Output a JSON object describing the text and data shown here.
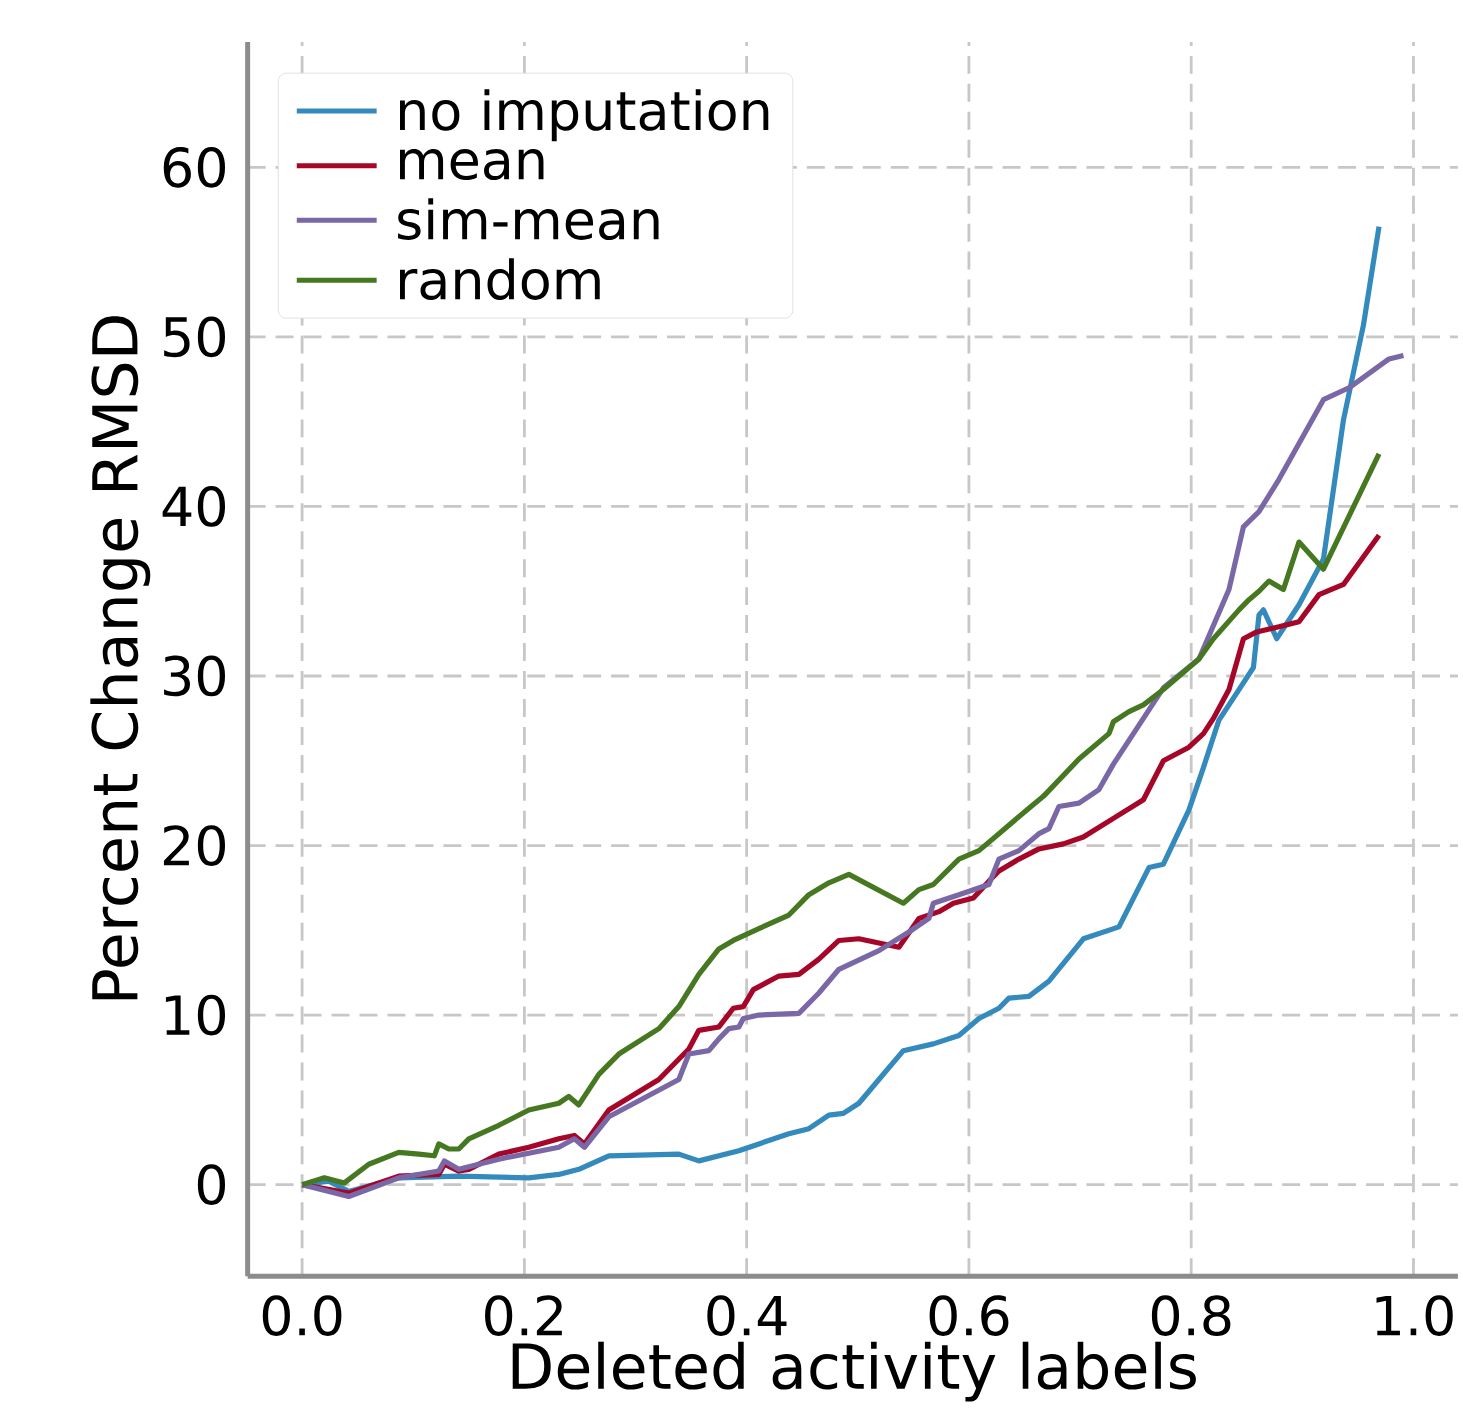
{
  "chart_data": {
    "type": "line",
    "xlabel": "Deleted activity labels",
    "ylabel": "Percent Change RMSD",
    "xlim": [
      -0.049,
      1.04
    ],
    "ylim": [
      -5.4,
      67.4
    ],
    "xticks": [
      {
        "value": 0,
        "label": "0.0"
      },
      {
        "value": 0.2,
        "label": "0.2"
      },
      {
        "value": 0.4,
        "label": "0.4"
      },
      {
        "value": 0.6,
        "label": "0.6"
      },
      {
        "value": 0.8,
        "label": "0.8"
      },
      {
        "value": 1,
        "label": "1.0"
      }
    ],
    "yticks": [
      0,
      10,
      20,
      30,
      40,
      50,
      60
    ],
    "grid": true,
    "legend": "top left",
    "series": [
      {
        "name": "no imputation",
        "color": "#348abd",
        "x": [
          0,
          0.024,
          0.042,
          0.087,
          0.141,
          0.204,
          0.231,
          0.249,
          0.276,
          0.339,
          0.357,
          0.393,
          0.411,
          0.438,
          0.456,
          0.474,
          0.487,
          0.501,
          0.519,
          0.541,
          0.568,
          0.591,
          0.609,
          0.627,
          0.636,
          0.654,
          0.672,
          0.703,
          0.735,
          0.762,
          0.775,
          0.798,
          0.811,
          0.825,
          0.843,
          0.856,
          0.861,
          0.865,
          0.877,
          0.897,
          0.919,
          0.937,
          0.955,
          0.969
        ],
        "values": [
          0,
          0.2,
          -0.4,
          0.4,
          0.5,
          0.4,
          0.6,
          0.9,
          1.7,
          1.8,
          1.4,
          2.0,
          2.4,
          3.0,
          3.3,
          4.1,
          4.2,
          4.8,
          6.2,
          7.9,
          8.3,
          8.8,
          9.8,
          10.4,
          11.0,
          11.1,
          12.0,
          14.5,
          15.2,
          18.7,
          18.9,
          22.1,
          24.6,
          27.4,
          29.2,
          30.5,
          33.6,
          33.9,
          32.2,
          34.2,
          36.9,
          45.1,
          50.7,
          56.5
        ]
      },
      {
        "name": "mean",
        "color": "#a60628",
        "x": [
          0,
          0.042,
          0.087,
          0.123,
          0.128,
          0.141,
          0.15,
          0.177,
          0.204,
          0.231,
          0.245,
          0.254,
          0.276,
          0.321,
          0.348,
          0.357,
          0.375,
          0.388,
          0.397,
          0.406,
          0.429,
          0.447,
          0.465,
          0.483,
          0.501,
          0.537,
          0.555,
          0.573,
          0.586,
          0.604,
          0.618,
          0.627,
          0.645,
          0.663,
          0.685,
          0.703,
          0.73,
          0.757,
          0.775,
          0.798,
          0.811,
          0.82,
          0.834,
          0.847,
          0.859,
          0.879,
          0.897,
          0.915,
          0.937,
          0.969
        ],
        "values": [
          0,
          -0.5,
          0.5,
          0.6,
          1.2,
          0.8,
          0.9,
          1.8,
          2.2,
          2.7,
          2.9,
          2.4,
          4.4,
          6.2,
          8.0,
          9.1,
          9.3,
          10.4,
          10.5,
          11.5,
          12.3,
          12.4,
          13.3,
          14.4,
          14.5,
          14.0,
          15.7,
          16.1,
          16.6,
          16.9,
          17.9,
          18.5,
          19.2,
          19.8,
          20.1,
          20.5,
          21.6,
          22.7,
          25.0,
          25.8,
          26.6,
          27.5,
          29.2,
          32.2,
          32.6,
          32.9,
          33.2,
          34.8,
          35.4,
          38.3
        ]
      },
      {
        "name": "sim-mean",
        "color": "#7a68a6",
        "x": [
          0,
          0.042,
          0.087,
          0.123,
          0.128,
          0.141,
          0.177,
          0.231,
          0.245,
          0.254,
          0.276,
          0.339,
          0.348,
          0.366,
          0.375,
          0.384,
          0.393,
          0.397,
          0.411,
          0.447,
          0.465,
          0.483,
          0.519,
          0.546,
          0.564,
          0.568,
          0.591,
          0.618,
          0.627,
          0.645,
          0.663,
          0.672,
          0.681,
          0.699,
          0.717,
          0.73,
          0.757,
          0.775,
          0.807,
          0.834,
          0.847,
          0.861,
          0.879,
          0.919,
          0.942,
          0.978,
          0.991
        ],
        "values": [
          0,
          -0.7,
          0.4,
          0.8,
          1.4,
          0.9,
          1.5,
          2.2,
          2.7,
          2.2,
          4.0,
          6.2,
          7.7,
          7.9,
          8.6,
          9.2,
          9.3,
          9.8,
          10.0,
          10.1,
          11.3,
          12.7,
          13.8,
          14.9,
          15.7,
          16.6,
          17.1,
          17.7,
          19.2,
          19.7,
          20.7,
          21.0,
          22.3,
          22.5,
          23.3,
          24.8,
          27.5,
          29.3,
          31.0,
          35.1,
          38.8,
          39.7,
          41.6,
          46.3,
          47.0,
          48.7,
          48.9
        ]
      },
      {
        "name": "random",
        "color": "#467821",
        "x": [
          0,
          0.02,
          0.038,
          0.06,
          0.087,
          0.105,
          0.119,
          0.123,
          0.132,
          0.141,
          0.15,
          0.177,
          0.204,
          0.231,
          0.24,
          0.249,
          0.267,
          0.285,
          0.321,
          0.339,
          0.357,
          0.375,
          0.388,
          0.411,
          0.438,
          0.456,
          0.474,
          0.492,
          0.541,
          0.555,
          0.568,
          0.591,
          0.609,
          0.627,
          0.654,
          0.667,
          0.699,
          0.726,
          0.73,
          0.744,
          0.757,
          0.775,
          0.807,
          0.82,
          0.843,
          0.852,
          0.861,
          0.87,
          0.883,
          0.897,
          0.919,
          0.969
        ],
        "values": [
          0,
          0.4,
          0.1,
          1.2,
          1.9,
          1.8,
          1.7,
          2.4,
          2.1,
          2.1,
          2.7,
          3.5,
          4.4,
          4.8,
          5.2,
          4.7,
          6.5,
          7.7,
          9.2,
          10.5,
          12.4,
          13.9,
          14.4,
          15.1,
          15.9,
          17.1,
          17.8,
          18.3,
          16.6,
          17.4,
          17.7,
          19.2,
          19.7,
          20.7,
          22.2,
          22.9,
          25.1,
          26.6,
          27.3,
          27.9,
          28.3,
          29.2,
          31.0,
          32.2,
          33.9,
          34.5,
          35.0,
          35.6,
          35.1,
          37.9,
          36.3,
          43.1
        ]
      }
    ]
  }
}
